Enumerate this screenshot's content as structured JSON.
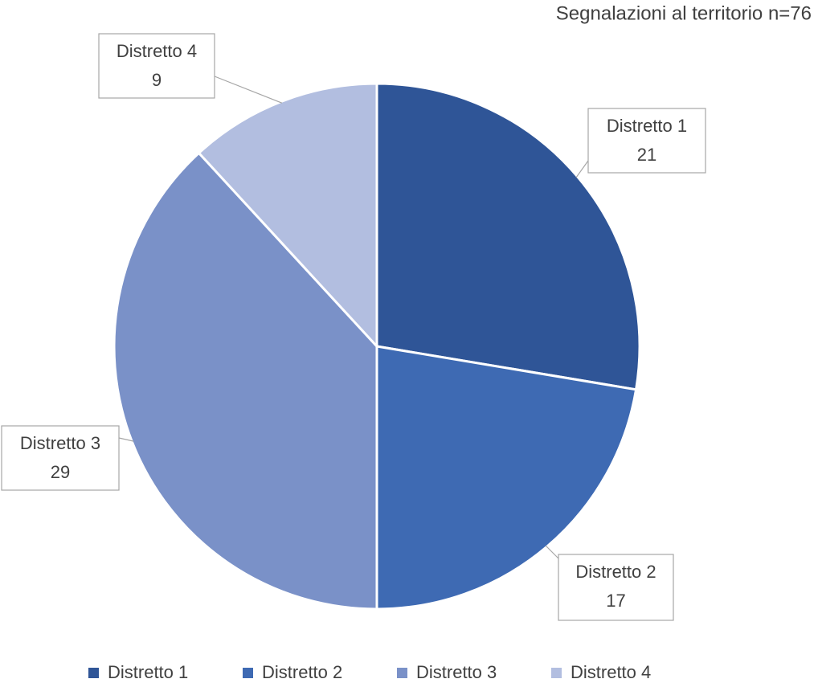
{
  "chart_data": {
    "type": "pie",
    "title": "Segnalazioni al territorio n=76",
    "categories": [
      "Distretto 1",
      "Distretto 2",
      "Distretto 3",
      "Distretto 4"
    ],
    "values": [
      21,
      17,
      29,
      9
    ],
    "colors": [
      "#2f5597",
      "#3e6ab3",
      "#7a91c8",
      "#b2bee0"
    ]
  }
}
